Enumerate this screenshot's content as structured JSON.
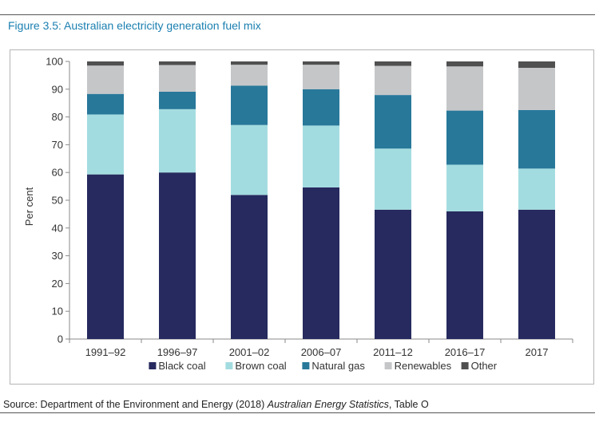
{
  "figure_title": "Figure 3.5: Australian electricity generation fuel mix",
  "source": {
    "prefix": "Source: Department of the Environment and Energy (2018) ",
    "italic": "Australian Energy Statistics",
    "suffix": ", Table O"
  },
  "colors": {
    "Black coal": "#262a5e",
    "Brown coal": "#a3dce0",
    "Natural gas": "#28789a",
    "Renewables": "#c5c6c8",
    "Other": "#505050"
  },
  "chart_data": {
    "type": "bar",
    "stacked": true,
    "title": "",
    "xlabel": "",
    "ylabel": "Per cent",
    "ylim": [
      0,
      100
    ],
    "yticks": [
      0,
      10,
      20,
      30,
      40,
      50,
      60,
      70,
      80,
      90,
      100
    ],
    "grid": false,
    "legend": "bottom",
    "categories": [
      "1991–92",
      "1996–97",
      "2001–02",
      "2006–07",
      "2011–12",
      "2016–17",
      "2017"
    ],
    "series": [
      {
        "name": "Black coal",
        "values": [
          59.3,
          60.0,
          51.9,
          54.6,
          46.6,
          46.0,
          46.6
        ]
      },
      {
        "name": "Brown coal",
        "values": [
          21.6,
          22.8,
          25.2,
          22.3,
          22.0,
          16.8,
          14.8
        ]
      },
      {
        "name": "Natural gas",
        "values": [
          7.4,
          6.3,
          14.2,
          13.1,
          19.3,
          19.5,
          21.1
        ]
      },
      {
        "name": "Renewables",
        "values": [
          10.2,
          9.6,
          7.5,
          8.8,
          10.5,
          15.9,
          15.2
        ]
      },
      {
        "name": "Other",
        "values": [
          1.5,
          1.3,
          1.2,
          1.2,
          1.6,
          1.8,
          2.3
        ]
      }
    ]
  }
}
